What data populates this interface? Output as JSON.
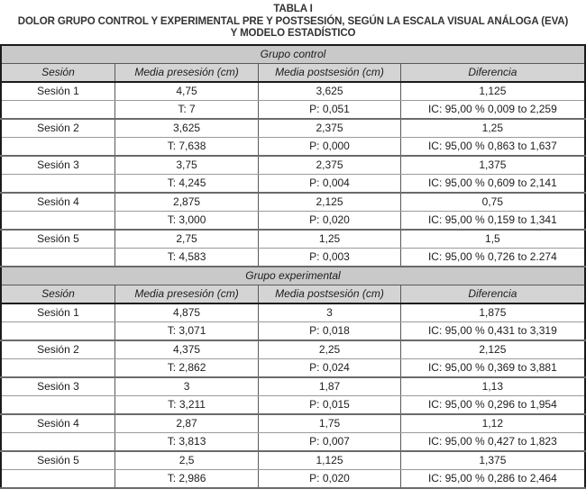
{
  "header": {
    "table_label": "TABLA I",
    "title_line1": "DOLOR GRUPO CONTROL Y EXPERIMENTAL PRE Y POSTSESIÓN, SEGÚN LA ESCALA VISUAL ANÁLOGA (EVA)",
    "title_line2": "Y MODELO ESTADÍSTICO"
  },
  "colors": {
    "group_band_bg": "#c9c9c9",
    "column_header_bg": "#d4d4d4",
    "outer_border": "#1b1b1b"
  },
  "chart_data": {
    "type": "table",
    "title": "TABLA I — DOLOR GRUPO CONTROL Y EXPERIMENTAL PRE Y POSTSESIÓN, SEGÚN LA ESCALA VISUAL ANÁLOGA (EVA) Y MODELO ESTADÍSTICO",
    "groups": [
      {
        "title": "Grupo control",
        "columns": [
          "Sesión",
          "Media presesión (cm)",
          "Media postsesión (cm)",
          "Diferencia"
        ],
        "rows": [
          [
            "Sesión 1",
            "4,75",
            "3,625",
            "1,125"
          ],
          [
            "",
            "T: 7",
            "P: 0,051",
            "IC: 95,00 % 0,009 to 2,259"
          ],
          [
            "Sesión 2",
            "3,625",
            "2,375",
            "1,25"
          ],
          [
            "",
            "T: 7,638",
            "P: 0,000",
            "IC: 95,00 % 0,863 to 1,637"
          ],
          [
            "Sesión 3",
            "3,75",
            "2,375",
            "1,375"
          ],
          [
            "",
            "T: 4,245",
            "P: 0,004",
            "IC: 95,00 % 0,609 to 2,141"
          ],
          [
            "Sesión 4",
            "2,875",
            "2,125",
            "0,75"
          ],
          [
            "",
            "T: 3,000",
            "P: 0,020",
            "IC: 95,00 % 0,159 to 1,341"
          ],
          [
            "Sesión 5",
            "2,75",
            "1,25",
            "1,5"
          ],
          [
            "",
            "T: 4,583",
            "P: 0,003",
            "IC: 95,00 % 0,726 to 2.274"
          ]
        ]
      },
      {
        "title": "Grupo experimental",
        "columns": [
          "Sesión",
          "Media presesión (cm)",
          "Media postsesión (cm)",
          "Diferencia"
        ],
        "rows": [
          [
            "Sesión 1",
            "4,875",
            "3",
            "1,875"
          ],
          [
            "",
            "T: 3,071",
            "P: 0,018",
            "IC: 95,00 % 0,431 to 3,319"
          ],
          [
            "Sesión 2",
            "4,375",
            "2,25",
            "2,125"
          ],
          [
            "",
            "T: 2,862",
            "P: 0,024",
            "IC: 95,00 % 0,369 to 3,881"
          ],
          [
            "Sesión 3",
            "3",
            "1,87",
            "1,13"
          ],
          [
            "",
            "T: 3,211",
            "P: 0,015",
            "IC: 95,00 % 0,296 to 1,954"
          ],
          [
            "Sesión 4",
            "2,87",
            "1,75",
            "1,12"
          ],
          [
            "",
            "T: 3,813",
            "P: 0,007",
            "IC: 95,00 % 0,427 to 1,823"
          ],
          [
            "Sesión 5",
            "2,5",
            "1,125",
            "1,375"
          ],
          [
            "",
            "T: 2,986",
            "P: 0,020",
            "IC: 95,00 % 0,286 to 2,464"
          ]
        ]
      }
    ]
  }
}
